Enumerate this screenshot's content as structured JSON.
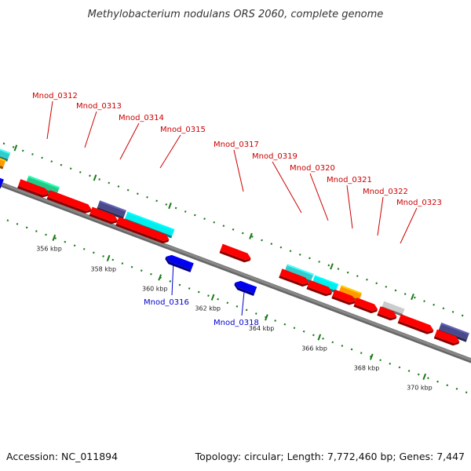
{
  "title": "Methylobacterium nodulans ORS 2060, complete genome",
  "footer": {
    "accession": "Accession: NC_011894",
    "summary": "Topology: circular; Length: 7,772,460 bp; Genes: 7,447"
  },
  "colors": {
    "forward_label": "#cc0000",
    "reverse_label": "#0000cc",
    "backbone": "#888888",
    "scale_ticks": "#1a7a1a",
    "forward_gene": "#ff0000",
    "reverse_gene": "#0000ee",
    "cyan_gene": "#33cccc",
    "aqua_gene": "#00eeee",
    "green_gene": "#22cc88",
    "navy_gene": "#4a4a8a",
    "orange_gene": "#ff9900",
    "grey_gene": "#cccccc"
  },
  "scale_labels": [
    "356 kbp",
    "358 kbp",
    "360 kbp",
    "362 kbp",
    "364 kbp",
    "366 kbp",
    "368 kbp",
    "370 kbp"
  ],
  "gene_labels": [
    {
      "id": "Mnod_0312",
      "strand": "forward"
    },
    {
      "id": "Mnod_0313",
      "strand": "forward"
    },
    {
      "id": "Mnod_0314",
      "strand": "forward"
    },
    {
      "id": "Mnod_0315",
      "strand": "forward"
    },
    {
      "id": "Mnod_0316",
      "strand": "reverse"
    },
    {
      "id": "Mnod_0317",
      "strand": "forward"
    },
    {
      "id": "Mnod_0318",
      "strand": "reverse"
    },
    {
      "id": "Mnod_0319",
      "strand": "forward"
    },
    {
      "id": "Mnod_0320",
      "strand": "forward"
    },
    {
      "id": "Mnod_0321",
      "strand": "forward"
    },
    {
      "id": "Mnod_0322",
      "strand": "forward"
    },
    {
      "id": "Mnod_0323",
      "strand": "forward"
    }
  ]
}
